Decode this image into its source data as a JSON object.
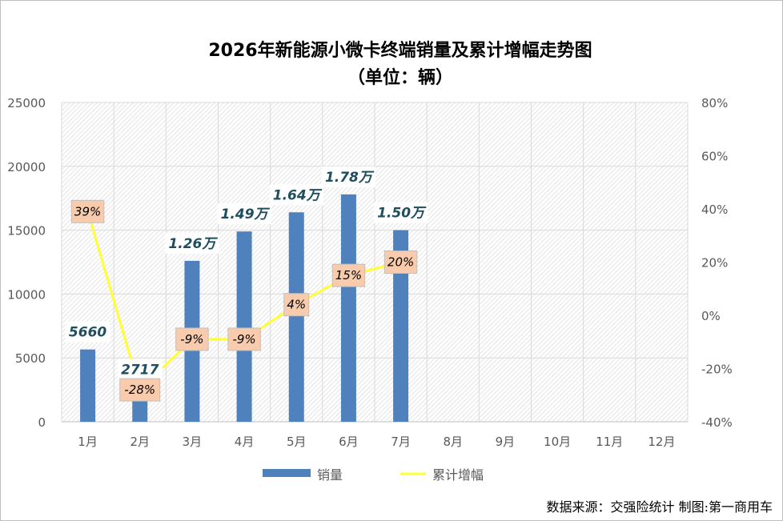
{
  "chart_data": {
    "type": "bar+line",
    "title": "2026年新能源小微卡终端销量及累计增幅走势图",
    "subtitle": "（单位：辆）",
    "categories": [
      "1月",
      "2月",
      "3月",
      "4月",
      "5月",
      "6月",
      "7月",
      "8月",
      "9月",
      "10月",
      "11月",
      "12月"
    ],
    "series": [
      {
        "name": "销量",
        "type": "bar",
        "axis": "left",
        "color": "#4f81bd",
        "values": [
          5660,
          2717,
          12600,
          14900,
          16400,
          17800,
          15000,
          null,
          null,
          null,
          null,
          null
        ],
        "labels": [
          "5660",
          "2717",
          "1.26万",
          "1.49万",
          "1.64万",
          "1.78万",
          "1.50万",
          "",
          "",
          "",
          "",
          ""
        ]
      },
      {
        "name": "累计增幅",
        "type": "line",
        "axis": "right",
        "color": "#ffff33",
        "values": [
          39,
          -28,
          -9,
          -9,
          4,
          15,
          20,
          null,
          null,
          null,
          null,
          null
        ],
        "labels": [
          "39%",
          "-28%",
          "-9%",
          "-9%",
          "4%",
          "15%",
          "20%",
          "",
          "",
          "",
          "",
          ""
        ]
      }
    ],
    "y_left": {
      "min": 0,
      "max": 25000,
      "step": 5000,
      "ticks": [
        "0",
        "5000",
        "10000",
        "15000",
        "20000",
        "25000"
      ]
    },
    "y_right": {
      "min": -40,
      "max": 80,
      "step": 20,
      "ticks": [
        "-40%",
        "-20%",
        "0%",
        "20%",
        "40%",
        "60%",
        "80%"
      ]
    },
    "grid": true,
    "legend": "bottom",
    "source": "数据来源：交强险统计  制图:第一商用车"
  }
}
